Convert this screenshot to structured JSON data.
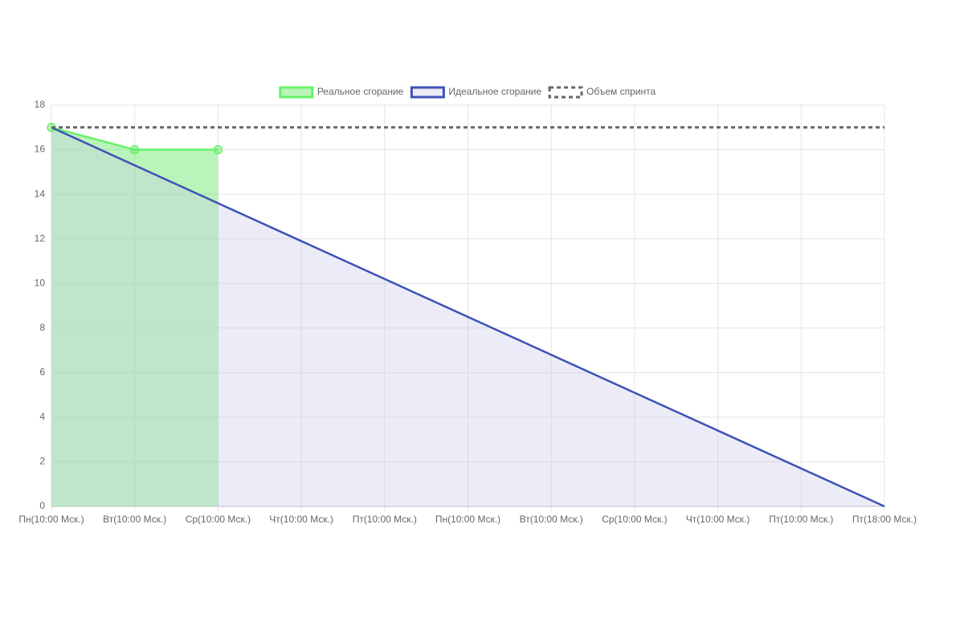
{
  "chart_data": {
    "type": "line",
    "categories": [
      "Пн(10:00 Мск.)",
      "Вт(10:00 Мск.)",
      "Ср(10:00 Мск.)",
      "Чт(10:00 Мск.)",
      "Пт(10:00 Мск.)",
      "Пн(10:00 Мск.)",
      "Вт(10:00 Мск.)",
      "Ср(10:00 Мск.)",
      "Чт(10:00 Мск.)",
      "Пт(10:00 Мск.)",
      "Пт(18:00 Мск.)"
    ],
    "series": [
      {
        "name": "Реальное сгорание",
        "color": "#66f266",
        "fill_color": "rgba(102,230,102,0.45)",
        "fill": true,
        "markers": true,
        "dashed": false,
        "values": [
          17,
          16,
          16,
          null,
          null,
          null,
          null,
          null,
          null,
          null,
          null
        ]
      },
      {
        "name": "Идеальное сгорание",
        "color": "#3f51b5",
        "fill_color": "rgba(200,200,235,0.35)",
        "fill": true,
        "markers": false,
        "dashed": false,
        "values": [
          17,
          15.3,
          13.6,
          11.9,
          10.2,
          8.5,
          6.8,
          5.1,
          3.4,
          1.7,
          0
        ]
      },
      {
        "name": "Объем спринта",
        "color": "#666666",
        "fill_color": "none",
        "fill": false,
        "markers": false,
        "dashed": true,
        "values": [
          17,
          17,
          17,
          17,
          17,
          17,
          17,
          17,
          17,
          17,
          17
        ]
      }
    ],
    "ylim": [
      0,
      18
    ],
    "yticks": [
      0,
      2,
      4,
      6,
      8,
      10,
      12,
      14,
      16,
      18
    ],
    "grid": true,
    "legend": "top"
  }
}
